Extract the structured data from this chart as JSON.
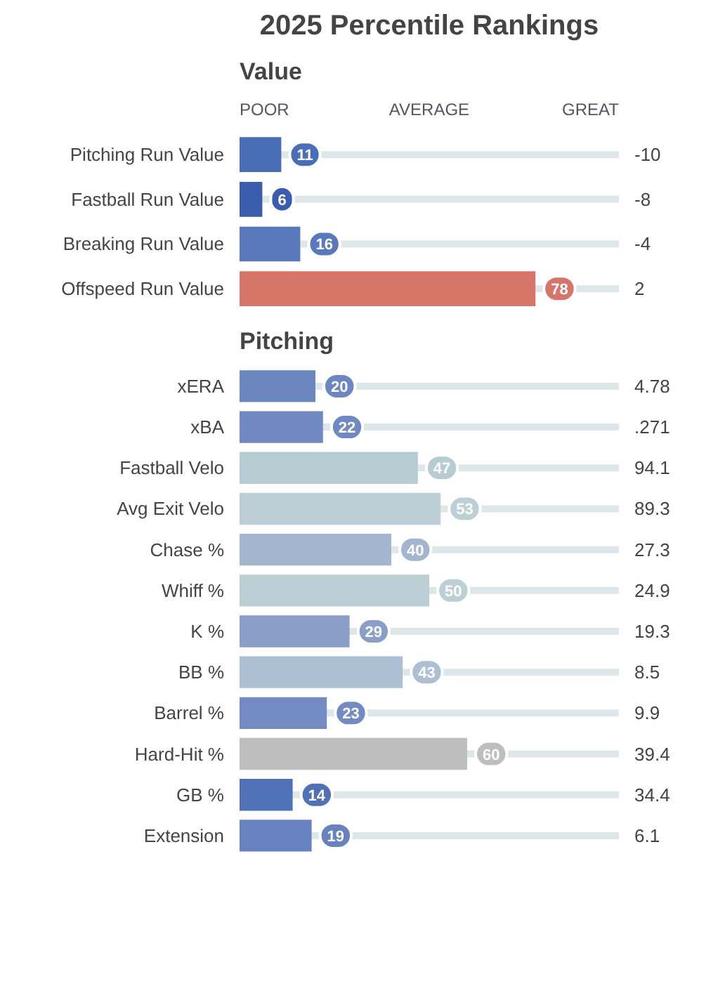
{
  "chart_data": [
    {
      "type": "bar",
      "orientation": "horizontal",
      "title": "2025 Percentile Rankings",
      "subtitle": "Value",
      "categories": [
        "Pitching Run Value",
        "Fastball Run Value",
        "Breaking Run Value",
        "Offspeed Run Value"
      ],
      "values": [
        11,
        6,
        16,
        78
      ],
      "colors": [
        "#4a6db7",
        "#3a5dad",
        "#5a79bc",
        "#d6766a"
      ],
      "data_labels": true,
      "xlim": [
        0,
        100
      ],
      "tick_labels": "y",
      "annotations": [
        "POOR",
        "AVERAGE",
        "GREAT",
        "-10",
        "-8",
        "-4",
        "2"
      ]
    },
    {
      "type": "bar",
      "orientation": "horizontal",
      "title": "Pitching",
      "categories": [
        "xERA",
        "xBA",
        "Fastball Velo",
        "Avg Exit Velo",
        "Chase %",
        "Whiff %",
        "K %",
        "BB %",
        "Barrel %",
        "Hard-Hit %",
        "GB %",
        "Extension"
      ],
      "values": [
        20,
        22,
        47,
        53,
        40,
        50,
        29,
        43,
        23,
        60,
        14,
        19
      ],
      "colors": [
        "#6c86c0",
        "#7089c1",
        "#b6ccd3",
        "#bccfd4",
        "#a3b5cf",
        "#bccfd4",
        "#8a9ec9",
        "#adbfd2",
        "#738bc2",
        "#bebebe",
        "#5071b6",
        "#6881bf"
      ],
      "data_labels": true,
      "xlim": [
        0,
        100
      ],
      "tick_labels": "y",
      "annotations": [
        "4.78",
        ".271",
        "94.1",
        "89.3",
        "27.3",
        "24.9",
        "19.3",
        "8.5",
        "9.9",
        "39.4",
        "34.4",
        "6.1"
      ]
    }
  ]
}
